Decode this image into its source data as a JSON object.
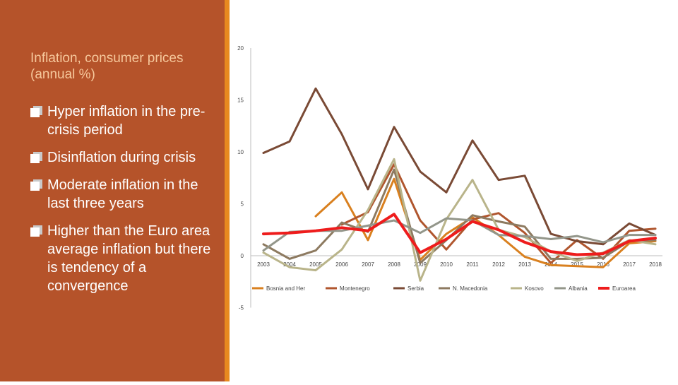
{
  "slide": {
    "subtitle": "Inflation, consumer prices (annual %)",
    "bullets": [
      "Hyper inflation in the pre-crisis period",
      "Disinflation during crisis",
      "Moderate inflation in the last three years",
      "Higher than the Euro area average inflation but there is tendency of a convergence"
    ],
    "bullet_icon": "checkbox-square-icon",
    "colors": {
      "panel": "#b5532a",
      "accent": "#e8891f",
      "subtitle": "#f6c89c"
    }
  },
  "chart_data": {
    "type": "line",
    "title": "",
    "xlabel": "",
    "ylabel": "",
    "x": [
      "2003",
      "2004",
      "2005",
      "2006",
      "2007",
      "2008",
      "2009",
      "2010",
      "2011",
      "2012",
      "2013",
      "2014",
      "2015",
      "2016",
      "2017",
      "2018"
    ],
    "y_ticks": [
      20,
      15,
      10,
      5,
      0,
      -5
    ],
    "ylim": [
      -5,
      20
    ],
    "grid": false,
    "legend": "bottom",
    "series": [
      {
        "name": "Bosnia and Her",
        "color": "#d9801f",
        "width": 3,
        "values": [
          null,
          null,
          3.8,
          6.1,
          1.5,
          7.4,
          -0.4,
          2.1,
          3.7,
          2.0,
          -0.1,
          -0.9,
          -1.0,
          -1.1,
          1.2,
          1.4
        ]
      },
      {
        "name": "Montenegro",
        "color": "#b0562e",
        "width": 3,
        "values": [
          null,
          null,
          null,
          3.0,
          4.2,
          8.8,
          3.4,
          0.6,
          3.5,
          4.1,
          2.2,
          -0.7,
          1.5,
          -0.3,
          2.4,
          2.6
        ]
      },
      {
        "name": "Serbia",
        "color": "#7a4a35",
        "width": 3,
        "values": [
          9.9,
          11.0,
          16.1,
          11.7,
          6.4,
          12.4,
          8.1,
          6.1,
          11.1,
          7.3,
          7.7,
          2.1,
          1.4,
          1.1,
          3.1,
          2.0
        ]
      },
      {
        "name": "N. Macedonia",
        "color": "#8d7a60",
        "width": 3,
        "values": [
          1.1,
          -0.3,
          0.5,
          3.2,
          2.3,
          8.3,
          -0.7,
          1.5,
          3.9,
          3.3,
          2.8,
          -0.3,
          -0.3,
          -0.2,
          1.4,
          1.5
        ]
      },
      {
        "name": "Kosovo",
        "color": "#b9b48a",
        "width": 3,
        "values": [
          0.3,
          -1.1,
          -1.4,
          0.6,
          4.4,
          9.3,
          -2.4,
          3.5,
          7.3,
          2.5,
          1.8,
          0.4,
          -0.5,
          0.3,
          1.5,
          1.1
        ]
      },
      {
        "name": "Albania",
        "color": "#93968a",
        "width": 3,
        "values": [
          0.5,
          2.3,
          2.4,
          2.4,
          2.9,
          3.4,
          2.2,
          3.6,
          3.4,
          2.0,
          1.9,
          1.6,
          1.9,
          1.3,
          2.0,
          2.0
        ]
      },
      {
        "name": "Euroarea",
        "color": "#ee1c1c",
        "width": 4,
        "values": [
          2.1,
          2.2,
          2.4,
          2.7,
          2.4,
          4.0,
          0.3,
          1.6,
          3.3,
          2.5,
          1.3,
          0.4,
          0.1,
          0.2,
          1.4,
          1.7
        ]
      }
    ]
  }
}
